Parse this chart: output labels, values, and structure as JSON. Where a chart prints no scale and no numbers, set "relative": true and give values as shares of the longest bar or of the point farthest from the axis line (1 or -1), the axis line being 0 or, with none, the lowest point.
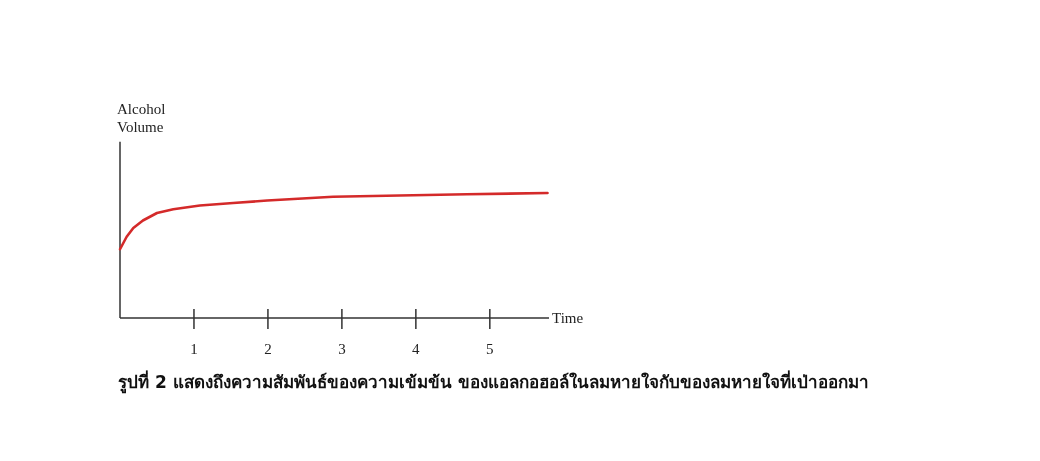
{
  "chart_data": {
    "type": "line",
    "relative": true,
    "xlabel": "Time",
    "ylabel": "Alcohol Volume",
    "x": [
      0,
      0.09,
      0.18,
      0.31,
      0.5,
      0.72,
      1.08,
      1.53,
      1.99,
      2.88,
      3.78,
      4.69,
      5.78
    ],
    "series": [
      {
        "color": "#d42a2a",
        "values": [
          0.55,
          0.65,
          0.72,
          0.78,
          0.84,
          0.87,
          0.9,
          0.92,
          0.94,
          0.97,
          0.98,
          0.99,
          1.0
        ]
      }
    ],
    "xlim": [
      0,
      5.8
    ],
    "xticks": [
      1,
      2,
      3,
      4,
      5
    ],
    "line_style": "solid",
    "annotations": [
      "รูปที่ 2 แสดงถึงความสัมพันธ์ของความเข้มข้น ของแอลกอฮอล์ในลมหายใจกับของลมหายใจที่เป่าออกมา"
    ]
  }
}
